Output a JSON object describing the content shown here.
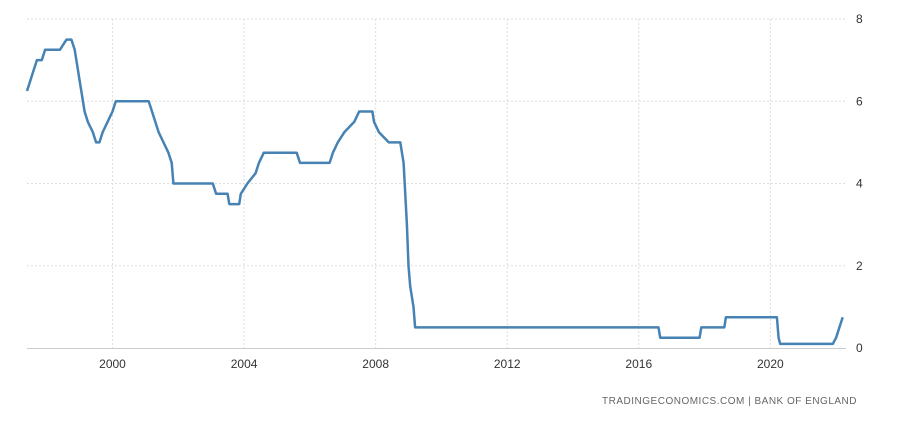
{
  "chart_data": {
    "type": "line",
    "title": "",
    "xlabel": "",
    "ylabel": "",
    "xlim": [
      1997.4,
      2022.3
    ],
    "ylim": [
      0,
      8
    ],
    "x_ticks": [
      2000,
      2004,
      2008,
      2012,
      2016,
      2020
    ],
    "y_ticks": [
      0,
      2,
      4,
      6,
      8
    ],
    "grid": true,
    "y_axis_position": "right",
    "line_color": "#4682b4",
    "series": [
      {
        "points": [
          [
            1997.4,
            6.25
          ],
          [
            1997.5,
            6.5
          ],
          [
            1997.6,
            6.75
          ],
          [
            1997.7,
            7.0
          ],
          [
            1997.85,
            7.0
          ],
          [
            1997.95,
            7.25
          ],
          [
            1998.4,
            7.25
          ],
          [
            1998.6,
            7.5
          ],
          [
            1998.75,
            7.5
          ],
          [
            1998.85,
            7.25
          ],
          [
            1998.95,
            6.75
          ],
          [
            1999.05,
            6.25
          ],
          [
            1999.15,
            5.75
          ],
          [
            1999.25,
            5.5
          ],
          [
            1999.4,
            5.25
          ],
          [
            1999.5,
            5.0
          ],
          [
            1999.6,
            5.0
          ],
          [
            1999.7,
            5.25
          ],
          [
            1999.85,
            5.5
          ],
          [
            2000.0,
            5.75
          ],
          [
            2000.1,
            6.0
          ],
          [
            2001.1,
            6.0
          ],
          [
            2001.2,
            5.75
          ],
          [
            2001.3,
            5.5
          ],
          [
            2001.4,
            5.25
          ],
          [
            2001.55,
            5.0
          ],
          [
            2001.7,
            4.75
          ],
          [
            2001.8,
            4.5
          ],
          [
            2001.85,
            4.0
          ],
          [
            2003.05,
            4.0
          ],
          [
            2003.15,
            3.75
          ],
          [
            2003.5,
            3.75
          ],
          [
            2003.55,
            3.5
          ],
          [
            2003.85,
            3.5
          ],
          [
            2003.9,
            3.75
          ],
          [
            2004.1,
            4.0
          ],
          [
            2004.35,
            4.25
          ],
          [
            2004.45,
            4.5
          ],
          [
            2004.6,
            4.75
          ],
          [
            2005.6,
            4.75
          ],
          [
            2005.7,
            4.5
          ],
          [
            2006.6,
            4.5
          ],
          [
            2006.7,
            4.75
          ],
          [
            2006.85,
            5.0
          ],
          [
            2007.05,
            5.25
          ],
          [
            2007.35,
            5.5
          ],
          [
            2007.5,
            5.75
          ],
          [
            2007.9,
            5.75
          ],
          [
            2007.95,
            5.5
          ],
          [
            2008.1,
            5.25
          ],
          [
            2008.4,
            5.0
          ],
          [
            2008.75,
            5.0
          ],
          [
            2008.85,
            4.5
          ],
          [
            2008.95,
            3.0
          ],
          [
            2009.0,
            2.0
          ],
          [
            2009.05,
            1.5
          ],
          [
            2009.15,
            1.0
          ],
          [
            2009.2,
            0.5
          ],
          [
            2016.6,
            0.5
          ],
          [
            2016.65,
            0.25
          ],
          [
            2017.85,
            0.25
          ],
          [
            2017.9,
            0.5
          ],
          [
            2018.6,
            0.5
          ],
          [
            2018.65,
            0.75
          ],
          [
            2020.2,
            0.75
          ],
          [
            2020.25,
            0.25
          ],
          [
            2020.3,
            0.1
          ],
          [
            2021.9,
            0.1
          ],
          [
            2022.0,
            0.25
          ],
          [
            2022.1,
            0.5
          ],
          [
            2022.2,
            0.75
          ]
        ]
      }
    ],
    "source": "TRADINGECONOMICS.COM | BANK OF ENGLAND"
  }
}
